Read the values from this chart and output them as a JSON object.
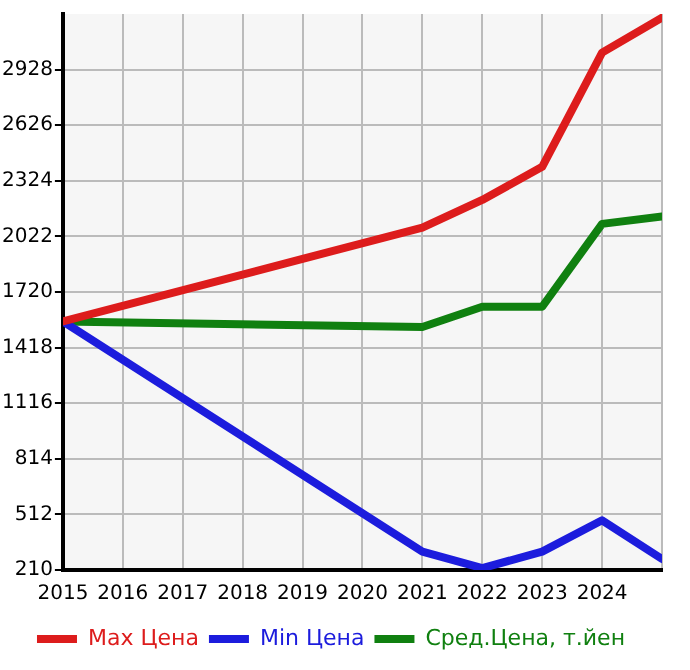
{
  "chart_data": {
    "type": "line",
    "x": [
      2015,
      2021,
      2022,
      2023,
      2024,
      2025
    ],
    "series": [
      {
        "name": "Max Цена",
        "color": "#dd1c1c",
        "values": [
          1560,
          2070,
          2220,
          2400,
          3020,
          3210
        ]
      },
      {
        "name": "Min Цена",
        "color": "#1c1cdd",
        "values": [
          1560,
          310,
          220,
          310,
          480,
          270
        ]
      },
      {
        "name": "Сред.Цена, т.йен",
        "color": "#108010",
        "values": [
          1560,
          1530,
          1640,
          1640,
          2090,
          2130
        ]
      }
    ],
    "xlim": [
      2015,
      2025
    ],
    "xticks": [
      2015,
      2016,
      2017,
      2018,
      2019,
      2020,
      2021,
      2022,
      2023,
      2024,
      {
        "value": 2025,
        "label": null
      }
    ],
    "ylim": [
      210,
      3230
    ],
    "yticks": [
      210,
      512,
      814,
      1116,
      1418,
      1720,
      2022,
      2324,
      2626,
      2928
    ],
    "grid": true,
    "legend": "bottom",
    "marker": "none",
    "line_style": "solid"
  }
}
